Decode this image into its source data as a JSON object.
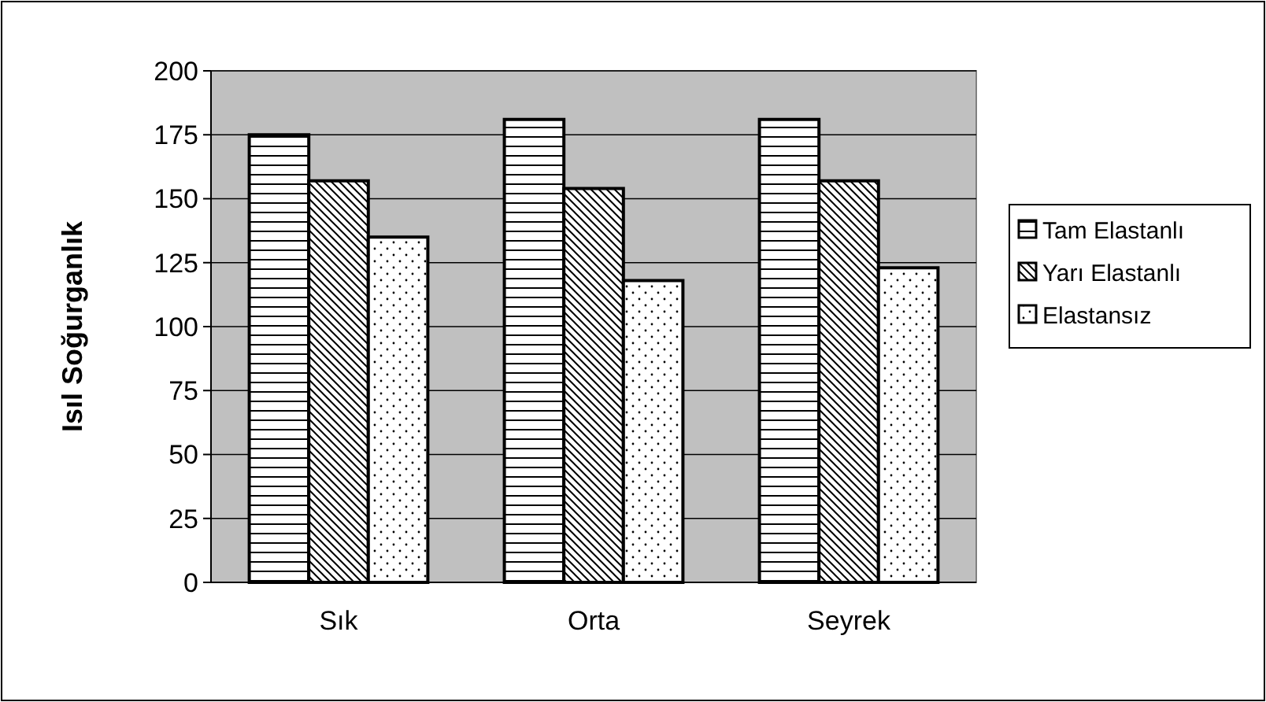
{
  "chart_data": {
    "type": "bar",
    "ylabel": "Isıl Soğurganlık",
    "categories": [
      "Sık",
      "Orta",
      "Seyrek"
    ],
    "series": [
      {
        "name": "Tam Elastanlı",
        "color": "#ffffff",
        "values": [
          175,
          181,
          181
        ]
      },
      {
        "name": "Yarı Elastanlı",
        "color": "#ffffff",
        "values": [
          157,
          154,
          157
        ]
      },
      {
        "name": "Elastansız",
        "color": "#ffffff",
        "values": [
          135,
          118,
          123
        ]
      }
    ],
    "ylim": [
      0,
      200
    ],
    "yticks": [
      0,
      25,
      50,
      75,
      100,
      125,
      150,
      175,
      200
    ],
    "grid": "y",
    "legend": "right"
  }
}
